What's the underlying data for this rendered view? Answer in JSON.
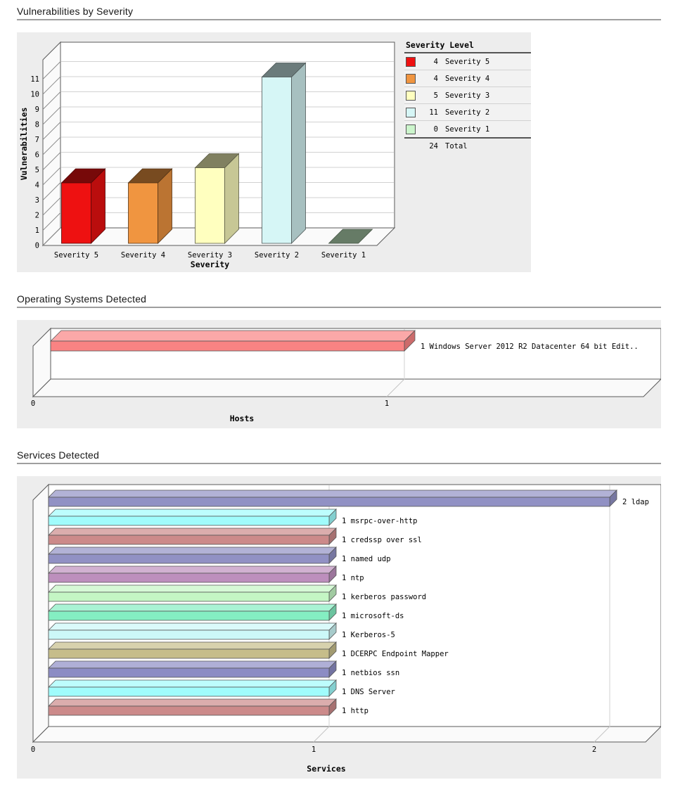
{
  "sections": [
    {
      "title": "Vulnerabilities by Severity"
    },
    {
      "title": "Operating Systems Detected"
    },
    {
      "title": "Services Detected"
    }
  ],
  "chart_data": [
    {
      "type": "bar",
      "orientation": "vertical",
      "style": "3d",
      "categories": [
        "Severity 5",
        "Severity 4",
        "Severity 3",
        "Severity 2",
        "Severity 1"
      ],
      "values": [
        4,
        4,
        5,
        11,
        0
      ],
      "colors": [
        "#ee1111",
        "#f09540",
        "#ffffbf",
        "#d6f6f6",
        "#ccf5cc"
      ],
      "xlabel": "Severity",
      "ylabel": "Vulnerabilities",
      "ylim": [
        0,
        11
      ],
      "ytick_step": 1,
      "grid": true,
      "legend": {
        "title": "Severity Level",
        "position": "top-right",
        "entries": [
          {
            "count": 4,
            "label": "Severity 5",
            "color": "#ee1111"
          },
          {
            "count": 4,
            "label": "Severity 4",
            "color": "#f09540"
          },
          {
            "count": 5,
            "label": "Severity 3",
            "color": "#ffffbf"
          },
          {
            "count": 11,
            "label": "Severity 2",
            "color": "#d6f6f6"
          },
          {
            "count": 0,
            "label": "Severity 1",
            "color": "#ccf5cc"
          }
        ],
        "total": {
          "count": 24,
          "label": "Total"
        }
      }
    },
    {
      "type": "bar",
      "orientation": "horizontal",
      "style": "3d",
      "categories": [
        "Windows Server 2012 R2 Datacenter 64 bit Edit.."
      ],
      "values": [
        1
      ],
      "bar_labels": [
        "1 Windows Server 2012 R2 Datacenter 64 bit Edit.."
      ],
      "colors": [
        "#f98383"
      ],
      "xlabel": "Hosts",
      "xlim": [
        0,
        1.7
      ],
      "xticks": [
        0,
        1
      ],
      "grid": true
    },
    {
      "type": "bar",
      "orientation": "horizontal",
      "style": "3d",
      "categories": [
        "ldap",
        "msrpc-over-http",
        "credssp over ssl",
        "named udp",
        "ntp",
        "kerberos password",
        "microsoft-ds",
        "Kerberos-5",
        "DCERPC Endpoint Mapper",
        "netbios ssn",
        "DNS Server",
        "http"
      ],
      "values": [
        2,
        1,
        1,
        1,
        1,
        1,
        1,
        1,
        1,
        1,
        1,
        1
      ],
      "bar_labels": [
        "2 ldap",
        "1 msrpc-over-http",
        "1 credssp over ssl",
        "1 named udp",
        "1 ntp",
        "1 kerberos password",
        "1 microsoft-ds",
        "1 Kerberos-5",
        "1 DCERPC Endpoint Mapper",
        "1 netbios ssn",
        "1 DNS Server",
        "1 http"
      ],
      "colors": [
        "#9191c4",
        "#a0fcfc",
        "#cc8a8a",
        "#9191c4",
        "#bd8fbd",
        "#c4f6c4",
        "#84eec2",
        "#ccf8f8",
        "#c6bd8a",
        "#8c8cc4",
        "#a0fcfc",
        "#cc8a8a"
      ],
      "xlabel": "Services",
      "xlim": [
        0,
        2.18
      ],
      "xticks": [
        0,
        1,
        2
      ],
      "grid": true
    }
  ]
}
